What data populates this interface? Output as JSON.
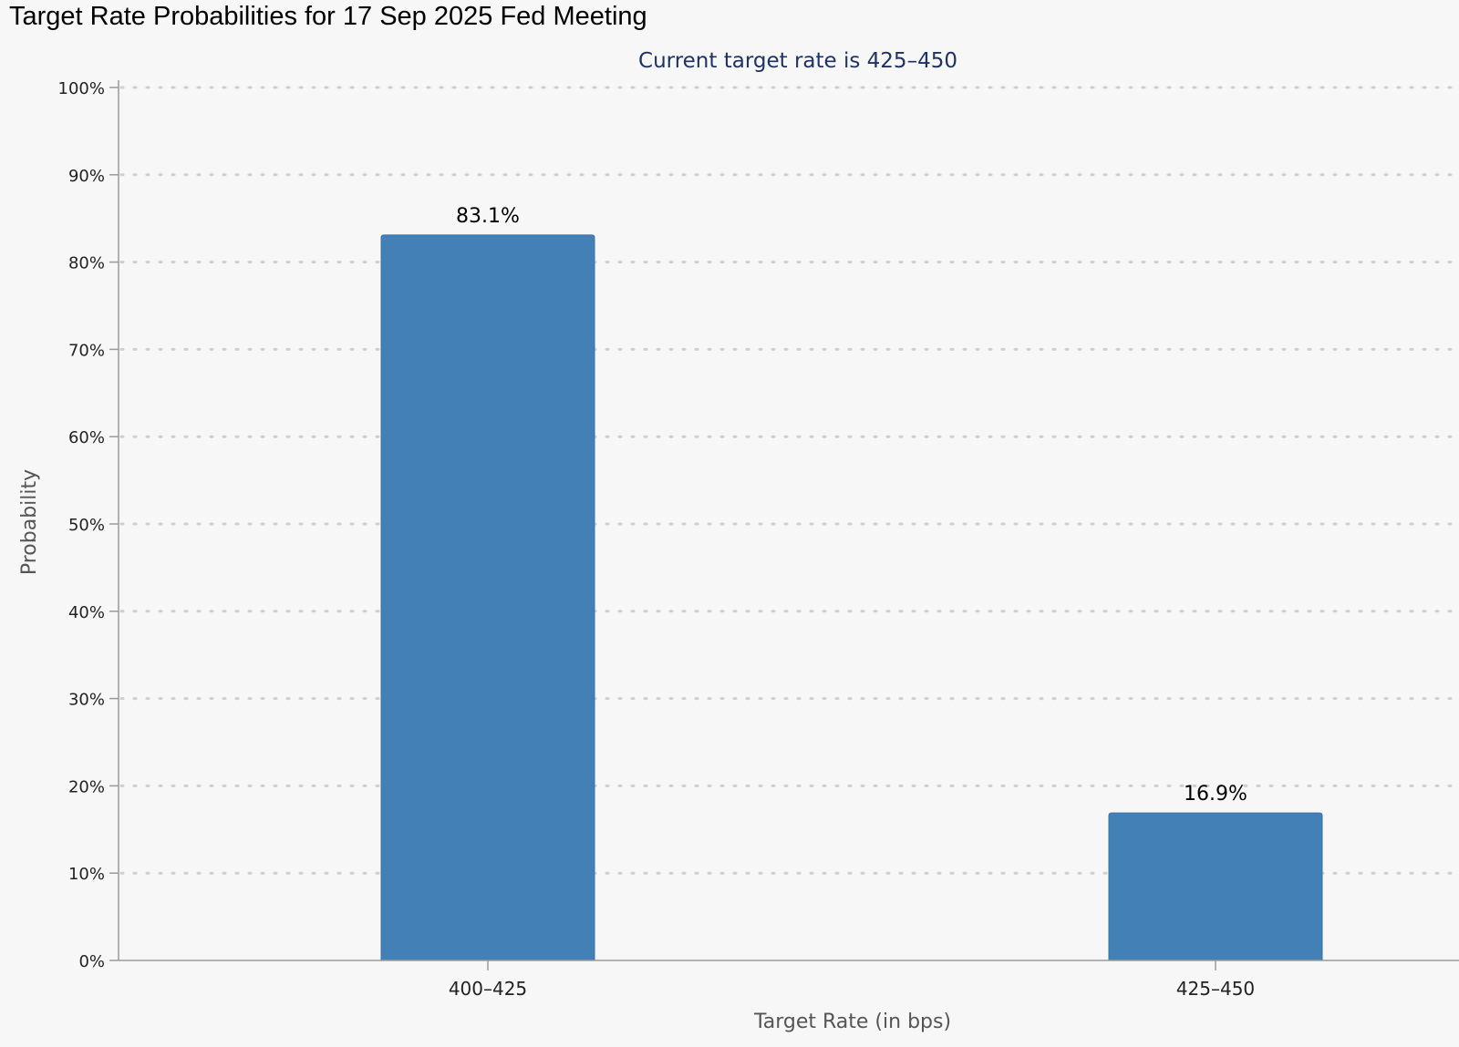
{
  "page_title": "Target Rate Probabilities for 17 Sep 2025 Fed Meeting",
  "colors": {
    "background": "#f7f7f7",
    "bar": "#4380b5",
    "subtitle": "#1e3266",
    "grid": "#cfcfcf",
    "axis": "#9a9a9a"
  },
  "chart_data": {
    "type": "bar",
    "title": "Target Rate Probabilities for 17 Sep 2025 Fed Meeting",
    "subtitle": "Current target rate is 425–450",
    "xlabel": "Target Rate (in bps)",
    "ylabel": "Probability",
    "categories": [
      "400–425",
      "425–450"
    ],
    "values": [
      83.1,
      16.9
    ],
    "value_labels": [
      "83.1%",
      "16.9%"
    ],
    "ylim": [
      0,
      100
    ],
    "yticks": [
      0,
      10,
      20,
      30,
      40,
      50,
      60,
      70,
      80,
      90,
      100
    ],
    "ytick_labels": [
      "0%",
      "10%",
      "20%",
      "30%",
      "40%",
      "50%",
      "60%",
      "70%",
      "80%",
      "90%",
      "100%"
    ],
    "grid": true,
    "legend": "none"
  }
}
